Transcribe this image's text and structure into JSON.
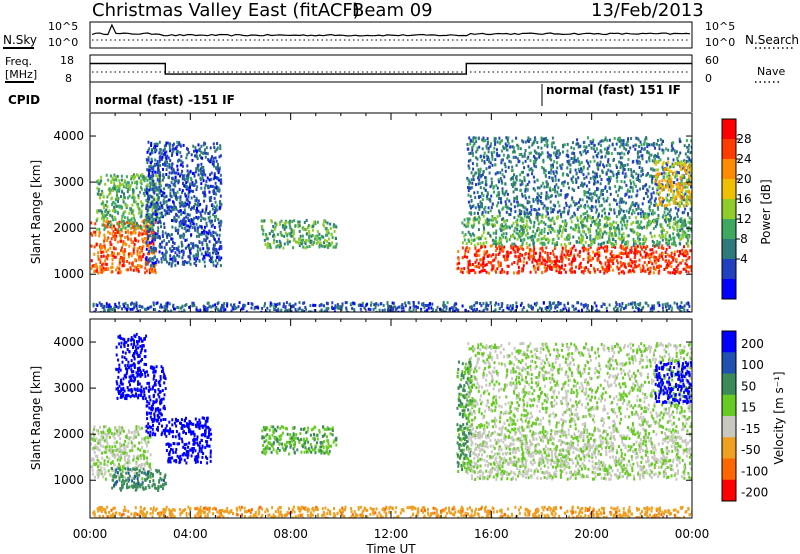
{
  "header": {
    "title": "Christmas Valley East (fitACF)",
    "beam": "Beam 09",
    "date": "13/Feb/2013"
  },
  "noise_panel": {
    "left_label": "N.Sky",
    "left_ticks": [
      "10^5",
      "10^0"
    ],
    "right_label": "N.Search",
    "right_ticks": [
      "10^5",
      "10^0"
    ],
    "right_line_style": "dotted"
  },
  "freq_panel": {
    "left_label_1": "Freq.",
    "left_label_2": "[MHz]",
    "left_ticks": [
      "18",
      "8"
    ],
    "right_label": "Nave",
    "right_ticks": [
      "60",
      "0"
    ],
    "freq_steps": [
      {
        "x_hours": 0,
        "mhz": 15.5
      },
      {
        "x_hours": 3.0,
        "mhz": 10.7
      },
      {
        "x_hours": 15.0,
        "mhz": 15.5
      },
      {
        "x_hours": 24,
        "mhz": 15.5
      }
    ],
    "nave_level": 12
  },
  "cpid": {
    "label": "CPID",
    "segments": [
      {
        "text": "normal (fast) -151 IF",
        "start_hours": 0
      },
      {
        "text": "normal (fast) 151 IF",
        "start_hours": 18.0
      }
    ]
  },
  "x_axis": {
    "label": "Time UT",
    "range_hours": [
      0,
      24
    ],
    "ticks": [
      "00:00",
      "04:00",
      "08:00",
      "12:00",
      "16:00",
      "20:00",
      "00:00"
    ]
  },
  "power_panel": {
    "ylabel": "Slant Range [km]",
    "yticks": [
      "1000",
      "2000",
      "3000",
      "4000"
    ],
    "colorbar_label": "Power [dB]",
    "colorbar_ticks": [
      "4",
      "8",
      "12",
      "16",
      "20",
      "24",
      "28"
    ],
    "colors": [
      "#0000ff",
      "#2040c0",
      "#2e7a7a",
      "#3ea860",
      "#8fcc2a",
      "#f0c000",
      "#ff8c00",
      "#ff3b00",
      "#ff0000"
    ]
  },
  "velocity_panel": {
    "ylabel": "Slant Range [km]",
    "yticks": [
      "1000",
      "2000",
      "3000",
      "4000"
    ],
    "colorbar_label": "Velocity [m s⁻¹]",
    "colorbar_ticks": [
      "200",
      "100",
      "50",
      "15",
      "-15",
      "-50",
      "-100",
      "-200"
    ],
    "colors": [
      "#0000ff",
      "#2050b0",
      "#3a8a5a",
      "#66cc22",
      "#c8c8c0",
      "#f0a020",
      "#ff6600",
      "#ff0000"
    ]
  },
  "chart_data": {
    "type": "heatmap",
    "title": "Christmas Valley East (fitACF)",
    "xlabel": "Time UT",
    "ylabel": "Slant Range [km]",
    "xlim_hours": [
      0,
      24
    ],
    "ylim_km": [
      180,
      4500
    ],
    "power_regions": [
      {
        "t0": 0.0,
        "t1": 2.6,
        "r0": 1050,
        "r1": 2200,
        "db": 24
      },
      {
        "t0": 0.2,
        "t1": 2.8,
        "r0": 2000,
        "r1": 3200,
        "db": 12
      },
      {
        "t0": 2.2,
        "t1": 5.2,
        "r0": 1200,
        "r1": 3900,
        "db": 6
      },
      {
        "t0": 6.8,
        "t1": 9.8,
        "r0": 1600,
        "r1": 2200,
        "db": 12
      },
      {
        "t0": 14.6,
        "t1": 24.0,
        "r0": 1050,
        "r1": 1650,
        "db": 26
      },
      {
        "t0": 14.8,
        "t1": 24.0,
        "r0": 1650,
        "r1": 2300,
        "db": 12
      },
      {
        "t0": 15.0,
        "t1": 24.0,
        "r0": 2300,
        "r1": 4000,
        "db": 8
      },
      {
        "t0": 22.5,
        "t1": 24.0,
        "r0": 2500,
        "r1": 3500,
        "db": 18
      },
      {
        "t0": 0.0,
        "t1": 24.0,
        "r0": 200,
        "r1": 420,
        "db": 6
      }
    ],
    "velocity_regions": [
      {
        "t0": 0.0,
        "t1": 2.4,
        "r0": 1050,
        "r1": 2200,
        "v": -5
      },
      {
        "t0": 1.0,
        "t1": 2.2,
        "r0": 2800,
        "r1": 4200,
        "v": 180
      },
      {
        "t0": 2.2,
        "t1": 3.0,
        "r0": 2000,
        "r1": 3500,
        "v": 180
      },
      {
        "t0": 3.0,
        "t1": 4.8,
        "r0": 1400,
        "r1": 2400,
        "v": 200
      },
      {
        "t0": 0.8,
        "t1": 3.0,
        "r0": 800,
        "r1": 1300,
        "v": 60
      },
      {
        "t0": 6.8,
        "t1": 9.8,
        "r0": 1600,
        "r1": 2200,
        "v": 30
      },
      {
        "t0": 14.6,
        "t1": 15.2,
        "r0": 1200,
        "r1": 3600,
        "v": 40
      },
      {
        "t0": 15.0,
        "t1": 24.0,
        "r0": 1050,
        "r1": 2100,
        "v": -5
      },
      {
        "t0": 15.0,
        "t1": 24.0,
        "r0": 2100,
        "r1": 4000,
        "v": 0
      },
      {
        "t0": 22.5,
        "t1": 24.0,
        "r0": 2700,
        "r1": 3600,
        "v": 190
      },
      {
        "t0": 0.0,
        "t1": 24.0,
        "r0": 200,
        "r1": 450,
        "v": -60
      }
    ]
  }
}
